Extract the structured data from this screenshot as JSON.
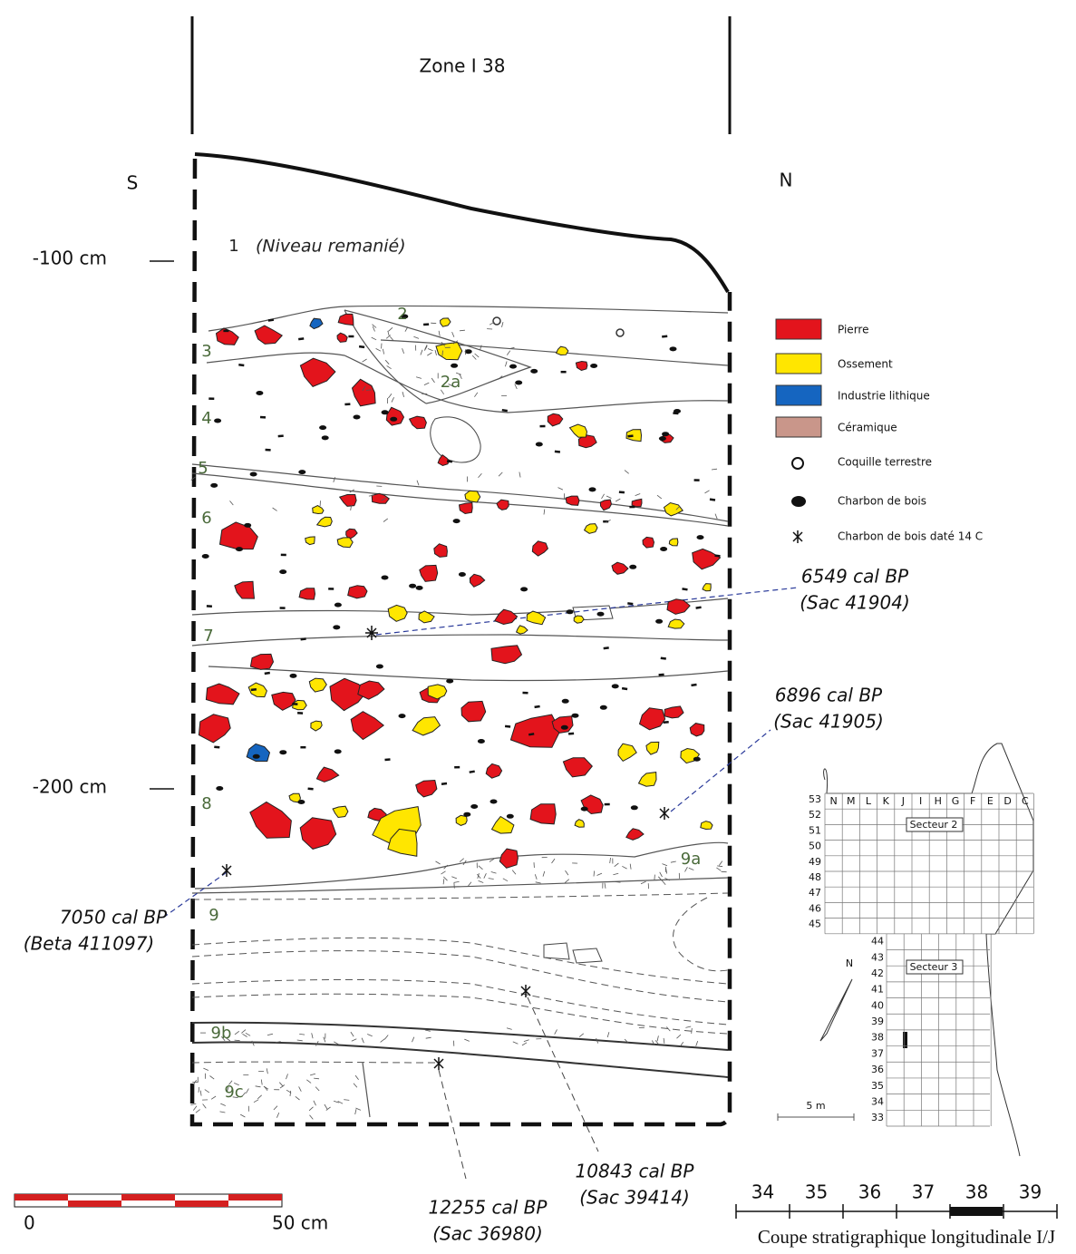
{
  "header": {
    "title": "Zone I 38",
    "south": "S",
    "north": "N"
  },
  "depth_labels": [
    "-100 cm",
    "-200 cm"
  ],
  "layer_note": "(Niveau remanié)",
  "layers": [
    "1",
    "2",
    "2a",
    "3",
    "4",
    "5",
    "6",
    "7",
    "8",
    "9",
    "9a",
    "9b",
    "9c"
  ],
  "legend": [
    "Pierre",
    "Ossement",
    "Industrie lithique",
    "Céramique",
    "Coquille terrestre",
    "Charbon de bois",
    "Charbon de bois daté 14 C"
  ],
  "dates": [
    {
      "age": "6549 cal BP",
      "sample": "(Sac 41904)"
    },
    {
      "age": "6896 cal BP",
      "sample": "(Sac 41905)"
    },
    {
      "age": "7050 cal BP",
      "sample": "(Beta 411097)"
    },
    {
      "age": "12255 cal BP",
      "sample": "(Sac 36980)"
    },
    {
      "age": "10843 cal BP",
      "sample": "(Sac 39414)"
    }
  ],
  "scale": {
    "start": "0",
    "end": "50 cm"
  },
  "map": {
    "columns": [
      "N",
      "M",
      "L",
      "K",
      "J",
      "I",
      "H",
      "G",
      "F",
      "E",
      "D",
      "C"
    ],
    "rows_secteur2": [
      53,
      52,
      51,
      50,
      49,
      48,
      47,
      46,
      45
    ],
    "rows_secteur3": [
      44,
      43,
      42,
      41,
      40,
      39,
      38,
      37,
      36,
      35,
      34,
      33
    ],
    "secteur2": "Secteur 2",
    "secteur3": "Secteur 3",
    "north": "N",
    "scale": "5 m"
  },
  "section_scale": {
    "ticks": [
      "34",
      "35",
      "36",
      "37",
      "38",
      "39"
    ],
    "caption": "Coupe stratigraphique longitudinale I/J"
  }
}
